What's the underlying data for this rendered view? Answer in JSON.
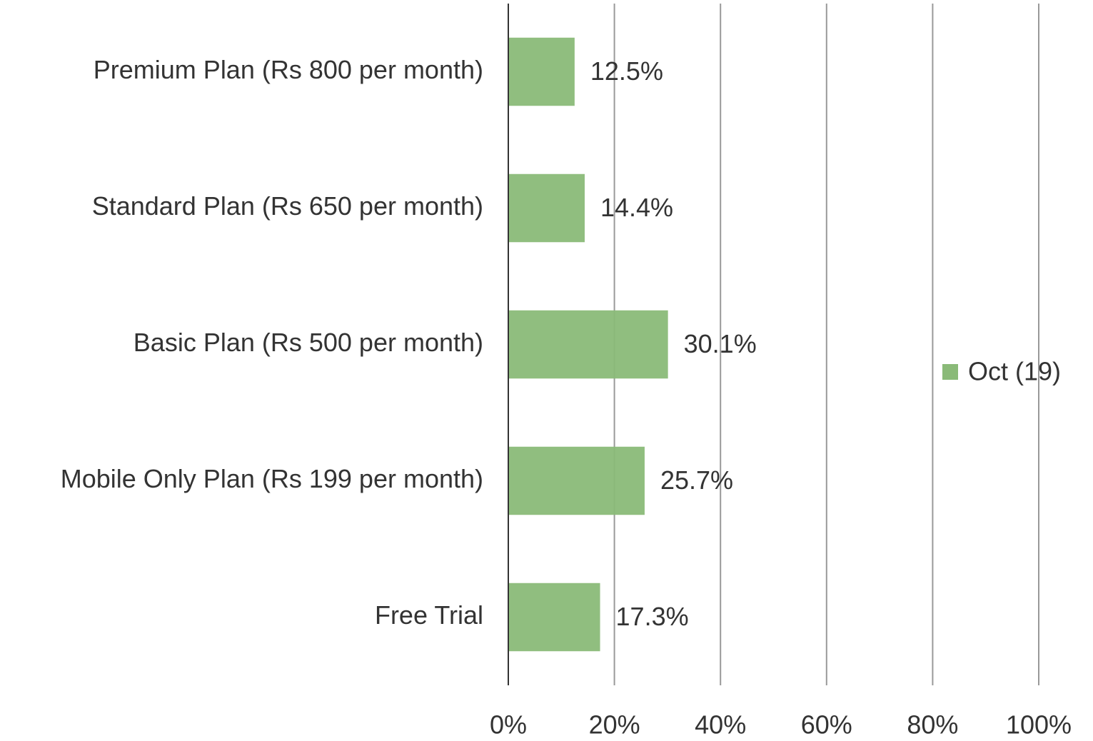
{
  "chart_data": {
    "type": "bar",
    "orientation": "horizontal",
    "categories": [
      "Premium Plan (Rs 800 per month)",
      "Standard Plan (Rs 650 per month)",
      "Basic Plan (Rs 500 per month)",
      "Mobile Only Plan (Rs 199 per month)",
      "Free Trial"
    ],
    "series": [
      {
        "name": "Oct (19)",
        "color": "#8aba78",
        "values": [
          12.5,
          14.4,
          30.1,
          25.7,
          17.3
        ],
        "value_labels": [
          "12.5%",
          "14.4%",
          "30.1%",
          "25.7%",
          "17.3%"
        ]
      }
    ],
    "xlim": [
      0,
      100
    ],
    "xticks": [
      {
        "value": 0,
        "label": "0%"
      },
      {
        "value": 20,
        "label": "20%"
      },
      {
        "value": 40,
        "label": "40%"
      },
      {
        "value": 60,
        "label": "60%"
      },
      {
        "value": 80,
        "label": "80%"
      },
      {
        "value": 100,
        "label": "100%"
      }
    ],
    "grid": true,
    "legend": "right"
  }
}
